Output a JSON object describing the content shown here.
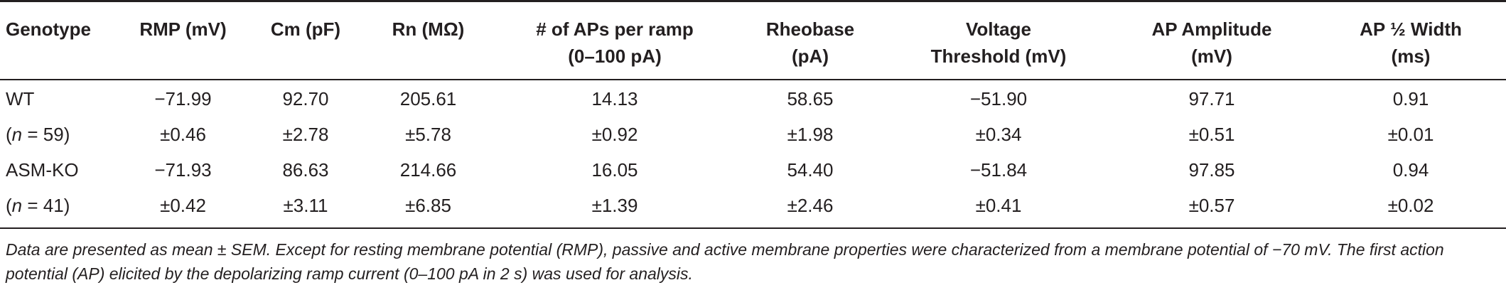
{
  "table": {
    "headers": [
      "Genotype",
      "RMP (mV)",
      "Cm (pF)",
      "Rn (MΩ)",
      "# of APs per ramp\n(0–100 pA)",
      "Rheobase\n(pA)",
      "Voltage\nThreshold (mV)",
      "AP Amplitude\n(mV)",
      "AP ½ Width\n(ms)"
    ],
    "rows": [
      {
        "label": "WT",
        "cells": [
          "−71.99",
          "92.70",
          "205.61",
          "14.13",
          "58.65",
          "−51.90",
          "97.71",
          "0.91"
        ]
      },
      {
        "label_n": "n",
        "label_rest": " = 59)",
        "label_open": "(",
        "cells": [
          "±0.46",
          "±2.78",
          "±5.78",
          "±0.92",
          "±1.98",
          "±0.34",
          "±0.51",
          "±0.01"
        ]
      },
      {
        "label": "ASM-KO",
        "cells": [
          "−71.93",
          "86.63",
          "214.66",
          "16.05",
          "54.40",
          "−51.84",
          "97.85",
          "0.94"
        ]
      },
      {
        "label_n": "n",
        "label_rest": " = 41)",
        "label_open": "(",
        "cells": [
          "±0.42",
          "±3.11",
          "±6.85",
          "±1.39",
          "±2.46",
          "±0.41",
          "±0.57",
          "±0.02"
        ]
      }
    ]
  },
  "footnote": "Data are presented as mean ± SEM. Except for resting membrane potential (RMP), passive and active membrane properties were characterized from a membrane potential of −70 mV. The first action potential (AP) elicited by the depolarizing ramp current (0–100 pA in 2 s) was used for analysis."
}
